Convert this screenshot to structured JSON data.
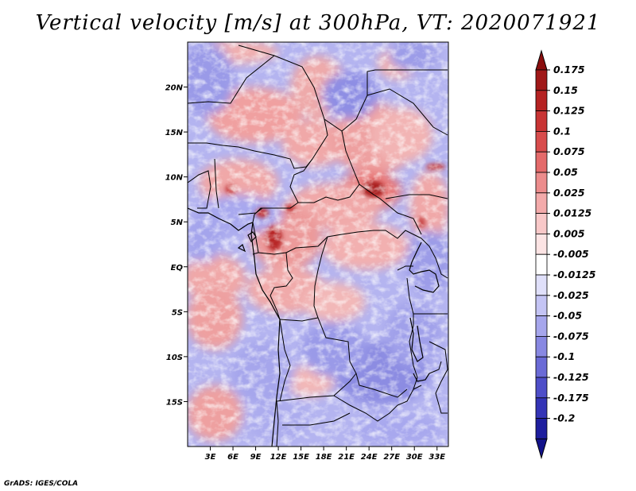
{
  "title": "Vertical velocity [m/s] at 300hPa, VT: 2020071921",
  "credit": "GrADS: IGES/COLA",
  "map": {
    "lat_labels": [
      {
        "label": "20N",
        "lat": 20
      },
      {
        "label": "15N",
        "lat": 15
      },
      {
        "label": "10N",
        "lat": 10
      },
      {
        "label": "5N",
        "lat": 5
      },
      {
        "label": "EQ",
        "lat": 0
      },
      {
        "label": "5S",
        "lat": -5
      },
      {
        "label": "10S",
        "lat": -10
      },
      {
        "label": "15S",
        "lat": -15
      }
    ],
    "lon_labels": [
      {
        "label": "3E",
        "lon": 3
      },
      {
        "label": "6E",
        "lon": 6
      },
      {
        "label": "9E",
        "lon": 9
      },
      {
        "label": "12E",
        "lon": 12
      },
      {
        "label": "15E",
        "lon": 15
      },
      {
        "label": "18E",
        "lon": 18
      },
      {
        "label": "21E",
        "lon": 21
      },
      {
        "label": "24E",
        "lon": 24
      },
      {
        "label": "27E",
        "lon": 27
      },
      {
        "label": "30E",
        "lon": 30
      },
      {
        "label": "33E",
        "lon": 33
      }
    ],
    "extent": {
      "lon_min": 0,
      "lon_max": 34.5,
      "lat_min": -20,
      "lat_max": 25
    }
  },
  "colorbar": {
    "levels": [
      {
        "label": "0.175",
        "color": "#a01818"
      },
      {
        "label": "0.15",
        "color": "#b52222"
      },
      {
        "label": "0.125",
        "color": "#c83434"
      },
      {
        "label": "0.1",
        "color": "#d84c4c"
      },
      {
        "label": "0.075",
        "color": "#e46a6a"
      },
      {
        "label": "0.05",
        "color": "#ec8c8c"
      },
      {
        "label": "0.025",
        "color": "#f3aaaa"
      },
      {
        "label": "0.0125",
        "color": "#f8c8c8"
      },
      {
        "label": "0.005",
        "color": "#fce4e4"
      },
      {
        "label": "-0.005",
        "color": "#ffffff"
      },
      {
        "label": "-0.0125",
        "color": "#e0e0fa"
      },
      {
        "label": "-0.025",
        "color": "#c4c4f4"
      },
      {
        "label": "-0.05",
        "color": "#a6a6ec"
      },
      {
        "label": "-0.075",
        "color": "#8888e2"
      },
      {
        "label": "-0.1",
        "color": "#6a6ad6"
      },
      {
        "label": "-0.125",
        "color": "#4e4ec8"
      },
      {
        "label": "-0.175",
        "color": "#3434b6"
      },
      {
        "label": "-0.2",
        "color": "#1e1e9e"
      }
    ],
    "top_color": "#8a0e0e",
    "bottom_color": "#12128a"
  }
}
